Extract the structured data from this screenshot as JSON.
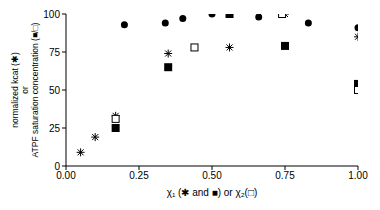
{
  "chart_data": {
    "type": "scatter",
    "xlabel": "χ₁ (✱ and ■) or χ₂(□)",
    "ylabel_lines": [
      "normalized kcat (✱)",
      "or",
      "ATPF saturation concentration (■/□)"
    ],
    "xlim": [
      0,
      1
    ],
    "xticks": [
      {
        "value": 0,
        "label": "0.00"
      },
      {
        "value": 0.25,
        "label": "0.25"
      },
      {
        "value": 0.5,
        "label": "0.50"
      },
      {
        "value": 0.75,
        "label": "0.75"
      },
      {
        "value": 1,
        "label": "1.00"
      }
    ],
    "ylim": [
      0,
      100
    ],
    "yticks": [
      0,
      25,
      50,
      75,
      100
    ],
    "grid": false,
    "series": [
      {
        "marker": "circle",
        "color": "#000000",
        "x": [
          0.2,
          0.34,
          0.4,
          0.5,
          0.66,
          0.83,
          1.0
        ],
        "values": [
          93,
          94,
          97,
          100,
          98,
          94,
          91
        ]
      },
      {
        "marker": "asterisk",
        "color": "#000000",
        "x": [
          0.05,
          0.1,
          0.17,
          0.35,
          0.56,
          0.75,
          1.0
        ],
        "values": [
          9,
          19,
          33,
          74,
          78,
          100,
          85
        ]
      },
      {
        "marker": "square",
        "color": "#000000",
        "x": [
          0.17,
          0.35,
          0.56,
          0.75,
          1.0
        ],
        "values": [
          25,
          65,
          100,
          79,
          54
        ]
      },
      {
        "marker": "open_square",
        "color": "#000000",
        "x": [
          0.17,
          0.44,
          0.74,
          1.0
        ],
        "values": [
          31,
          78,
          100,
          50
        ]
      }
    ]
  }
}
